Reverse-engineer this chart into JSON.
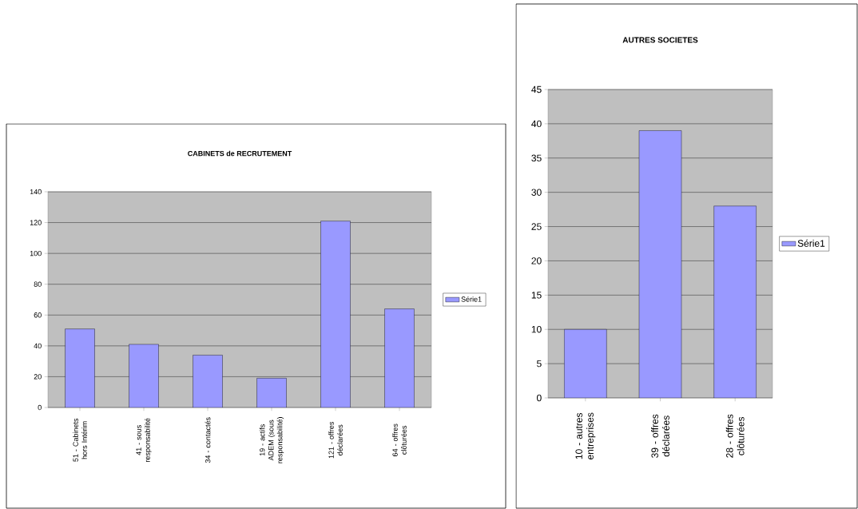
{
  "chart_data": [
    {
      "type": "bar",
      "title": "CABINETS de RECRUTEMENT",
      "categories": [
        "51 - Cabinets hors Intérim",
        "41 - sous responsabilité",
        "34 - contactés",
        "19 - actifs ADEM (sous responsabilité)",
        "121 - offres déclarées",
        "64 - offres clôturées"
      ],
      "series": [
        {
          "name": "Série1",
          "color": "#9999ff",
          "values": [
            51,
            41,
            34,
            19,
            121,
            64
          ]
        }
      ],
      "ylim": [
        0,
        140
      ],
      "yticks": [
        0,
        20,
        40,
        60,
        80,
        100,
        120,
        140
      ],
      "grid": "y",
      "legend": "right"
    },
    {
      "type": "bar",
      "title": "AUTRES SOCIETES",
      "categories": [
        "10 - autres entreprises",
        "39 - offres déclarées",
        "28 - offres clôturées"
      ],
      "series": [
        {
          "name": "Série1",
          "color": "#9999ff",
          "values": [
            10,
            39,
            28
          ]
        }
      ],
      "ylim": [
        0,
        45
      ],
      "yticks": [
        0,
        5,
        10,
        15,
        20,
        25,
        30,
        35,
        40,
        45
      ],
      "grid": "y",
      "legend": "right"
    }
  ]
}
